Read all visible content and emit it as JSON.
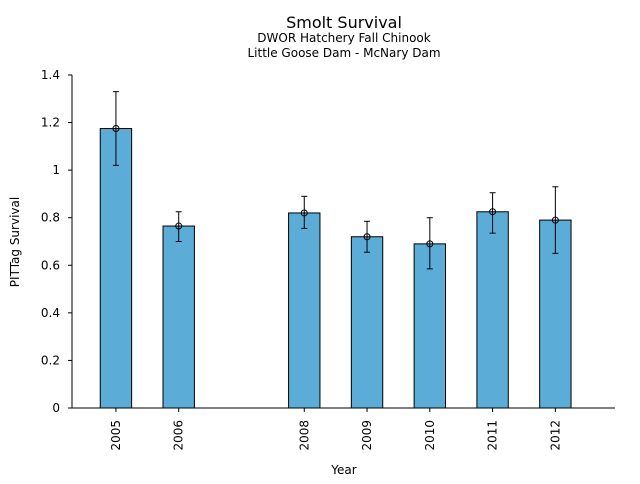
{
  "chart_data": {
    "type": "bar",
    "title": "Smolt Survival",
    "subtitle_lines": [
      "DWOR Hatchery Fall Chinook",
      "Little Goose Dam - McNary Dam"
    ],
    "xlabel": "Year",
    "ylabel": "PITTag Survival",
    "ylim": [
      0,
      1.4
    ],
    "yticks": [
      0,
      0.2,
      0.4,
      0.6,
      0.8,
      1,
      1.2,
      1.4
    ],
    "ytick_labels": [
      "0",
      "0.2",
      "0.4",
      "0.6",
      "0.8",
      "1",
      "1.2",
      "1.4"
    ],
    "xlim": [
      2004.3,
      2012.95
    ],
    "categories": [
      "2005",
      "2006",
      "2008",
      "2009",
      "2010",
      "2011",
      "2012"
    ],
    "x": [
      2005,
      2006,
      2008,
      2009,
      2010,
      2011,
      2012
    ],
    "values": [
      1.175,
      0.765,
      0.82,
      0.72,
      0.69,
      0.825,
      0.79
    ],
    "error_low": [
      1.02,
      0.7,
      0.755,
      0.655,
      0.585,
      0.735,
      0.65
    ],
    "error_high": [
      1.33,
      0.825,
      0.89,
      0.785,
      0.8,
      0.905,
      0.93
    ],
    "bar_width_years": 0.5,
    "grid": false,
    "bar_color": "#5BACD6",
    "bar_edge_color": "#000000"
  }
}
